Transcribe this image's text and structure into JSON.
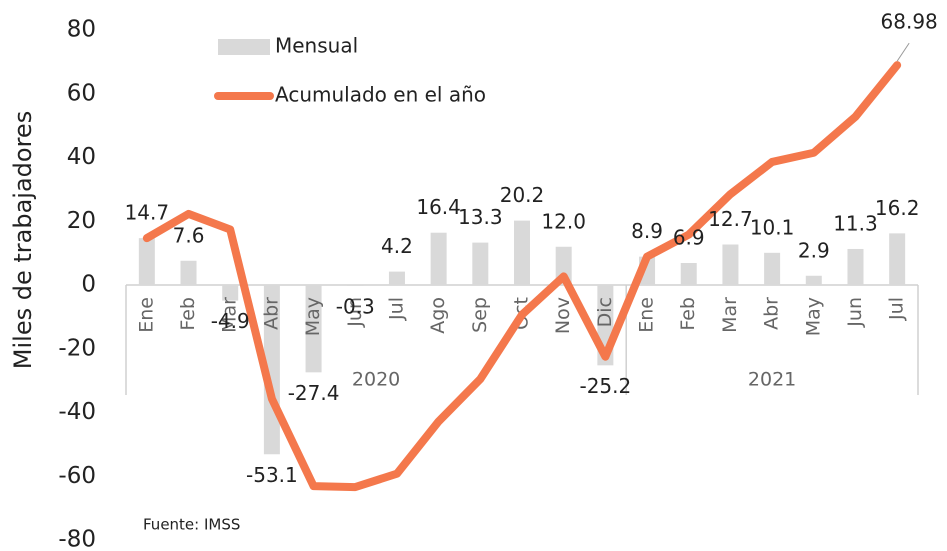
{
  "chart_data": {
    "type": "bar_line",
    "y_label": "Miles de trabajadores",
    "source": "Fuente: IMSS",
    "categories": [
      "Ene",
      "Feb",
      "Mar",
      "Abr",
      "May",
      "Jun",
      "Jul",
      "Ago",
      "Sep",
      "Oct",
      "Nov",
      "Dic",
      "Ene",
      "Feb",
      "Mar",
      "Abr",
      "May",
      "Jun",
      "Jul"
    ],
    "groups": [
      {
        "label": "2020",
        "size": 12
      },
      {
        "label": "2021",
        "size": 7
      }
    ],
    "series": [
      {
        "name": "Mensual",
        "type": "bar",
        "color": "#d9d9d9",
        "values": [
          14.7,
          7.6,
          -4.9,
          -53.1,
          -27.4,
          -0.3,
          4.2,
          16.4,
          13.3,
          20.2,
          12.0,
          -25.2,
          8.9,
          6.9,
          12.7,
          10.1,
          2.9,
          11.3,
          16.2
        ],
        "value_labels": [
          "14.7",
          "7.6",
          "-4.9",
          "-53.1",
          "-27.4",
          "-0.3",
          "4.2",
          "16.4",
          "13.3",
          "20.2",
          "12.0",
          "-25.2",
          "8.9",
          "6.9",
          "12.7",
          "10.1",
          "2.9",
          "11.3",
          "16.2"
        ]
      },
      {
        "name": "Acumulado en el año",
        "type": "line",
        "color": "#f4784c",
        "values": [
          14.7,
          22.3,
          17.4,
          -35.7,
          -63.1,
          -63.4,
          -59.2,
          -42.8,
          -29.5,
          -9.3,
          2.7,
          -22.5,
          8.9,
          15.8,
          28.5,
          38.6,
          41.5,
          52.8,
          68.98
        ]
      }
    ],
    "ylim": [
      -80,
      80
    ],
    "yticks": [
      -80,
      -60,
      -40,
      -20,
      0,
      20,
      40,
      60,
      80
    ]
  }
}
